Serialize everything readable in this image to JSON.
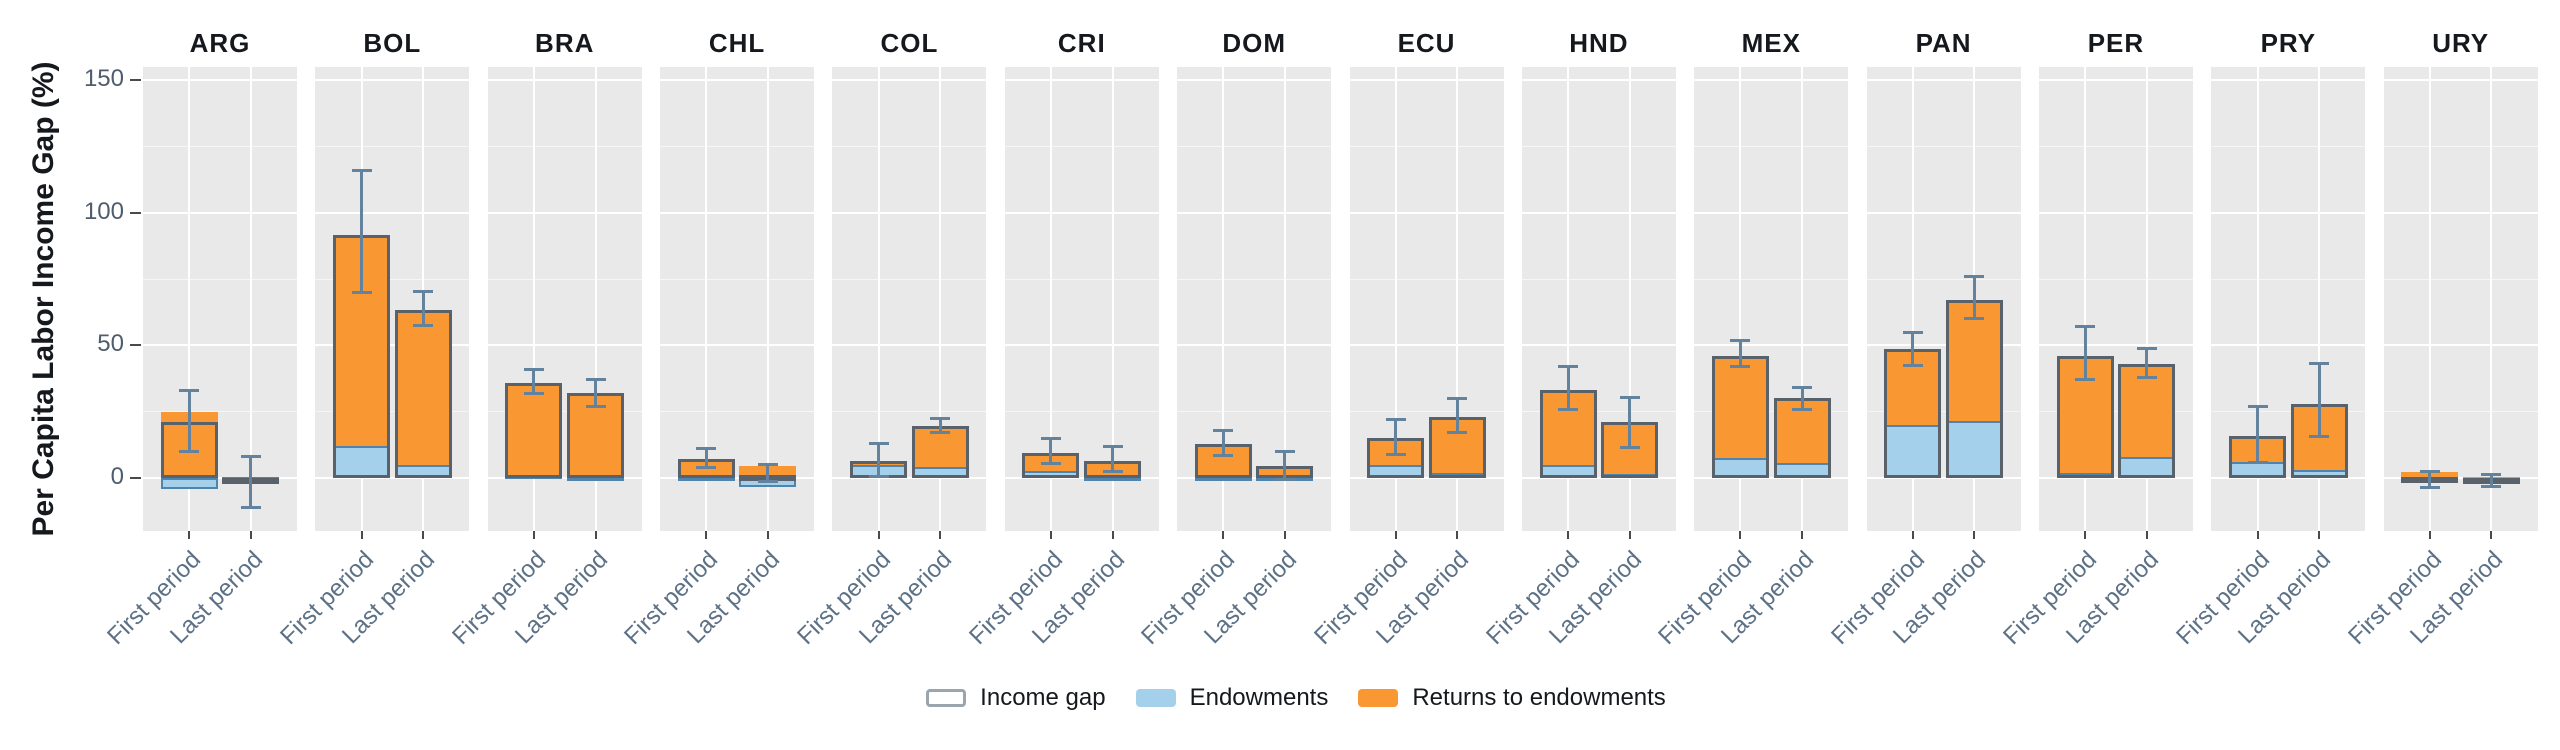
{
  "chart_data": {
    "type": "bar",
    "subtype": "faceted-stacked-bar-with-errorbars",
    "title": "",
    "ylabel": "Per Capita Labor Income Gap (%)",
    "xlabel": "",
    "y_ticks": [
      0,
      50,
      100,
      150
    ],
    "ylim": [
      -20,
      155
    ],
    "grid": true,
    "legend_position": "bottom",
    "categories": [
      "First period",
      "Last period"
    ],
    "facets": [
      {
        "code": "ARG",
        "bars": [
          {
            "period": "First period",
            "endowments": -4,
            "returns_to_endowments": 25,
            "income_gap": 21,
            "error_low": 10,
            "error_high": 33
          },
          {
            "period": "Last period",
            "endowments": 0.5,
            "returns_to_endowments": -2,
            "income_gap": -1.5,
            "error_low": -11,
            "error_high": 8
          }
        ]
      },
      {
        "code": "BOL",
        "bars": [
          {
            "period": "First period",
            "endowments": 12,
            "returns_to_endowments": 79.5,
            "income_gap": 91.5,
            "error_low": 70,
            "error_high": 116
          },
          {
            "period": "Last period",
            "endowments": 5,
            "returns_to_endowments": 58.5,
            "income_gap": 63.5,
            "error_low": 57.5,
            "error_high": 70.5
          }
        ]
      },
      {
        "code": "BRA",
        "bars": [
          {
            "period": "First period",
            "endowments": 1,
            "returns_to_endowments": 35,
            "income_gap": 36,
            "error_low": 32,
            "error_high": 41
          },
          {
            "period": "Last period",
            "endowments": 0.5,
            "returns_to_endowments": 31.5,
            "income_gap": 32,
            "error_low": 27,
            "error_high": 37
          }
        ]
      },
      {
        "code": "CHL",
        "bars": [
          {
            "period": "First period",
            "endowments": 0.5,
            "returns_to_endowments": 6.5,
            "income_gap": 7,
            "error_low": 4,
            "error_high": 11
          },
          {
            "period": "Last period",
            "endowments": -3.5,
            "returns_to_endowments": 4.5,
            "income_gap": 1,
            "error_low": -1.5,
            "error_high": 5
          }
        ]
      },
      {
        "code": "COL",
        "bars": [
          {
            "period": "First period",
            "endowments": 5,
            "returns_to_endowments": 1.5,
            "income_gap": 6.5,
            "error_low": 0.5,
            "error_high": 13
          },
          {
            "period": "Last period",
            "endowments": 4,
            "returns_to_endowments": 15.5,
            "income_gap": 19.5,
            "error_low": 17,
            "error_high": 22.5
          }
        ]
      },
      {
        "code": "CRI",
        "bars": [
          {
            "period": "First period",
            "endowments": 2.5,
            "returns_to_endowments": 7,
            "income_gap": 9.5,
            "error_low": 5.5,
            "error_high": 15
          },
          {
            "period": "Last period",
            "endowments": 0.5,
            "returns_to_endowments": 6,
            "income_gap": 6.5,
            "error_low": 2.5,
            "error_high": 12
          }
        ]
      },
      {
        "code": "DOM",
        "bars": [
          {
            "period": "First period",
            "endowments": 0.5,
            "returns_to_endowments": 12.5,
            "income_gap": 13,
            "error_low": 8.5,
            "error_high": 18
          },
          {
            "period": "Last period",
            "endowments": 0.5,
            "returns_to_endowments": 4,
            "income_gap": 4.5,
            "error_low": -0.5,
            "error_high": 10
          }
        ]
      },
      {
        "code": "ECU",
        "bars": [
          {
            "period": "First period",
            "endowments": 5,
            "returns_to_endowments": 10,
            "income_gap": 15,
            "error_low": 9,
            "error_high": 22
          },
          {
            "period": "Last period",
            "endowments": 2,
            "returns_to_endowments": 21,
            "income_gap": 23,
            "error_low": 17,
            "error_high": 30
          }
        ]
      },
      {
        "code": "HND",
        "bars": [
          {
            "period": "First period",
            "endowments": 5,
            "returns_to_endowments": 28,
            "income_gap": 33,
            "error_low": 26,
            "error_high": 42
          },
          {
            "period": "Last period",
            "endowments": 1.5,
            "returns_to_endowments": 19.5,
            "income_gap": 21,
            "error_low": 11.5,
            "error_high": 30.5
          }
        ]
      },
      {
        "code": "MEX",
        "bars": [
          {
            "period": "First period",
            "endowments": 7.5,
            "returns_to_endowments": 38.5,
            "income_gap": 46,
            "error_low": 42,
            "error_high": 52
          },
          {
            "period": "Last period",
            "endowments": 5.5,
            "returns_to_endowments": 24.5,
            "income_gap": 30,
            "error_low": 26,
            "error_high": 34
          }
        ]
      },
      {
        "code": "PAN",
        "bars": [
          {
            "period": "First period",
            "endowments": 20,
            "returns_to_endowments": 28.5,
            "income_gap": 48.5,
            "error_low": 42.5,
            "error_high": 55
          },
          {
            "period": "Last period",
            "endowments": 21.5,
            "returns_to_endowments": 45.5,
            "income_gap": 67,
            "error_low": 60,
            "error_high": 76
          }
        ]
      },
      {
        "code": "PER",
        "bars": [
          {
            "period": "First period",
            "endowments": 2,
            "returns_to_endowments": 44,
            "income_gap": 46,
            "error_low": 37,
            "error_high": 57
          },
          {
            "period": "Last period",
            "endowments": 8,
            "returns_to_endowments": 35,
            "income_gap": 43,
            "error_low": 38,
            "error_high": 49
          }
        ]
      },
      {
        "code": "PRY",
        "bars": [
          {
            "period": "First period",
            "endowments": 6,
            "returns_to_endowments": 10,
            "income_gap": 16,
            "error_low": 6,
            "error_high": 27
          },
          {
            "period": "Last period",
            "endowments": 3,
            "returns_to_endowments": 25,
            "income_gap": 28,
            "error_low": 15.5,
            "error_high": 43
          }
        ]
      },
      {
        "code": "URY",
        "bars": [
          {
            "period": "First period",
            "endowments": -2,
            "returns_to_endowments": 2.2,
            "income_gap": 0.3,
            "error_low": -3.5,
            "error_high": 2.6
          },
          {
            "period": "Last period",
            "endowments": -1.5,
            "returns_to_endowments": 0.4,
            "income_gap": -1.2,
            "error_low": -3.1,
            "error_high": 1.3
          }
        ]
      }
    ],
    "legend": [
      {
        "label": "Income gap",
        "swatch": "outline"
      },
      {
        "label": "Endowments",
        "swatch": "blue"
      },
      {
        "label": "Returns to endowments",
        "swatch": "orange"
      }
    ]
  },
  "colors": {
    "endowments_fill": "#A5D0EC",
    "endowments_border": "#5084AC",
    "returns_fill": "#F99832",
    "income_gap_outline": "#59626B",
    "error_bar": "#62829E",
    "panel_bg": "#E9E9EA",
    "gridline": "#FFFFFF",
    "facet_title": "#15191D",
    "y_tick_label": "#4E5D6C",
    "x_tick_label": "#5C7186",
    "legend_swatch_border": "#9AA5AD"
  }
}
